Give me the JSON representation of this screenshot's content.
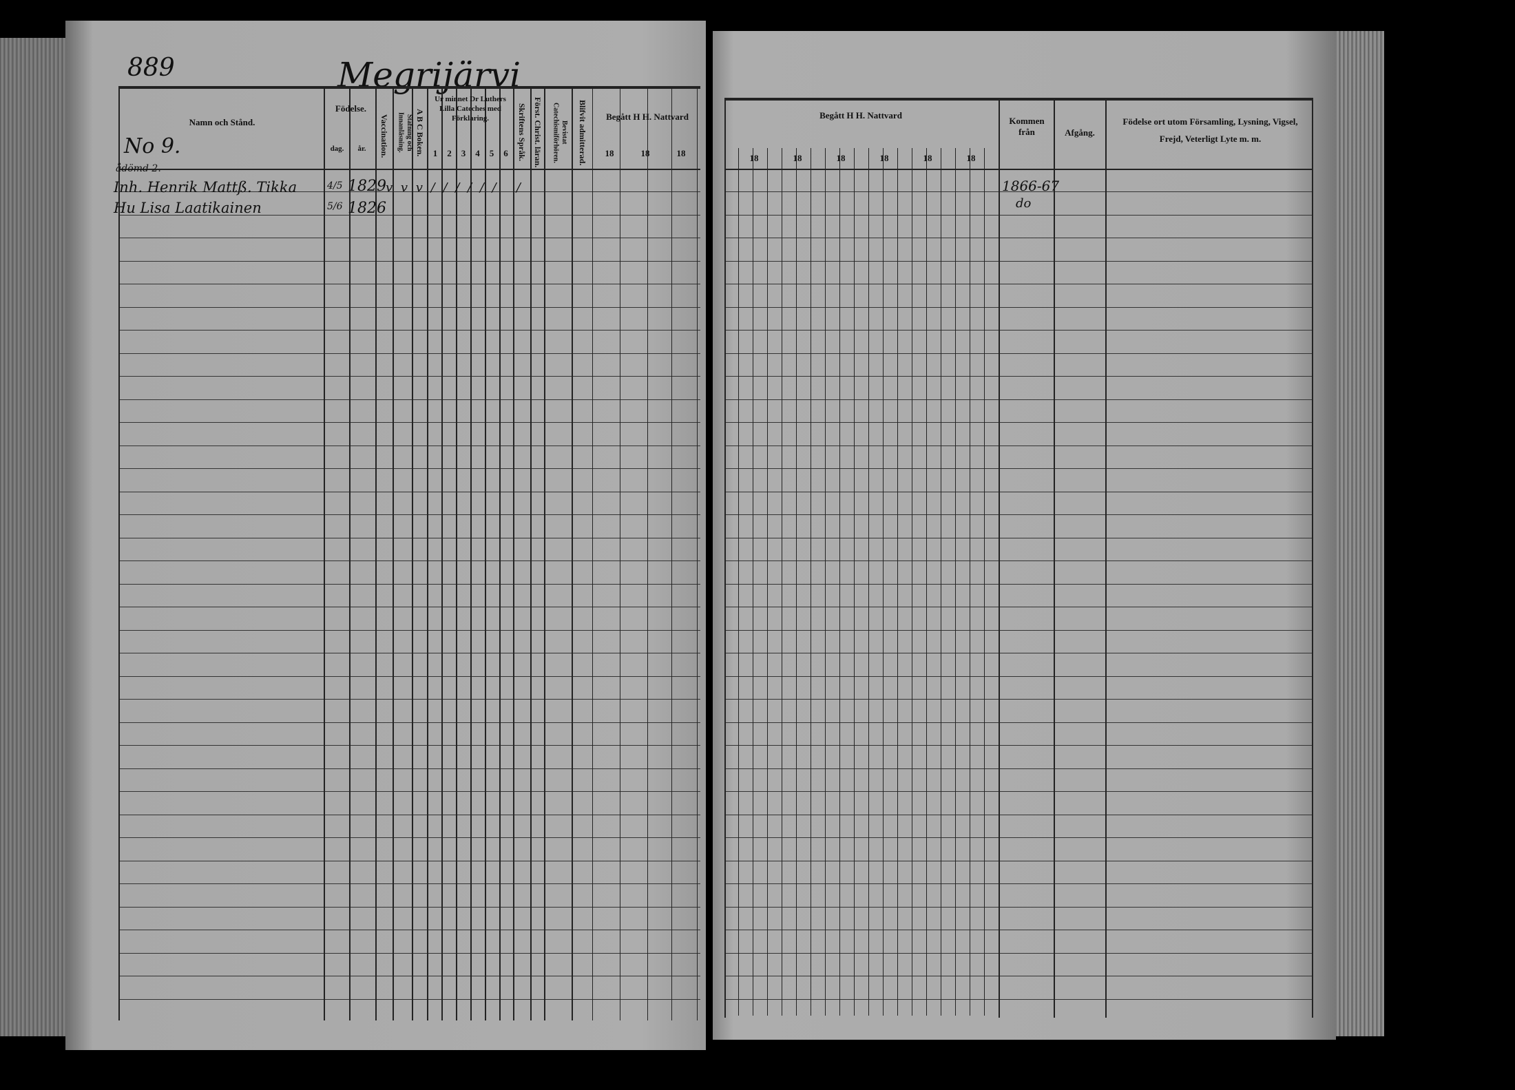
{
  "left_page": {
    "page_number": "889",
    "village": "Megrijärvi",
    "headers": {
      "name": "Namn och Stånd.",
      "birth": "Födelse.",
      "day": "dag.",
      "year": "år.",
      "vaccination": "Vaccination.",
      "reading": "Stafning och Innanläsning.",
      "abc": "A B C Boken.",
      "catechism": "Ur minnet Dr Luthers Lilla Cateches med Förklaring.",
      "catechism_cols": [
        "1",
        "2",
        "3",
        "4",
        "5",
        "6"
      ],
      "scripture": "Skriftens Språk.",
      "christian": "Först. Christ. läran.",
      "attended": "Bevistat Catechismiförhören.",
      "admitted": "Blifvit admitterad.",
      "communion": "Begått H H. Nattvard",
      "communion_cols": [
        "18",
        "18",
        "18"
      ]
    },
    "household": "No 9.",
    "note": "ådömd 2.",
    "entries": [
      {
        "name": "Inh. Henrik Mattß. Tikka",
        "day": "4/5",
        "year": "1829",
        "marks": "v v v / / / / / /   /"
      },
      {
        "name": "Hu Lisa Laatikainen",
        "day": "5/6",
        "year": "1826"
      }
    ]
  },
  "right_page": {
    "headers": {
      "communion": "Begått H H. Nattvard",
      "communion_cols": [
        "18",
        "18",
        "18",
        "18",
        "18",
        "18"
      ],
      "came_from": "Kommen från",
      "departure": "Afgång.",
      "remarks": "Födelse ort utom Församling, Lysning, Vigsel, Frejd, Veterligt Lyte m. m."
    },
    "entries": [
      {
        "came_from": "1866-67"
      },
      {
        "came_from": "do"
      }
    ]
  }
}
